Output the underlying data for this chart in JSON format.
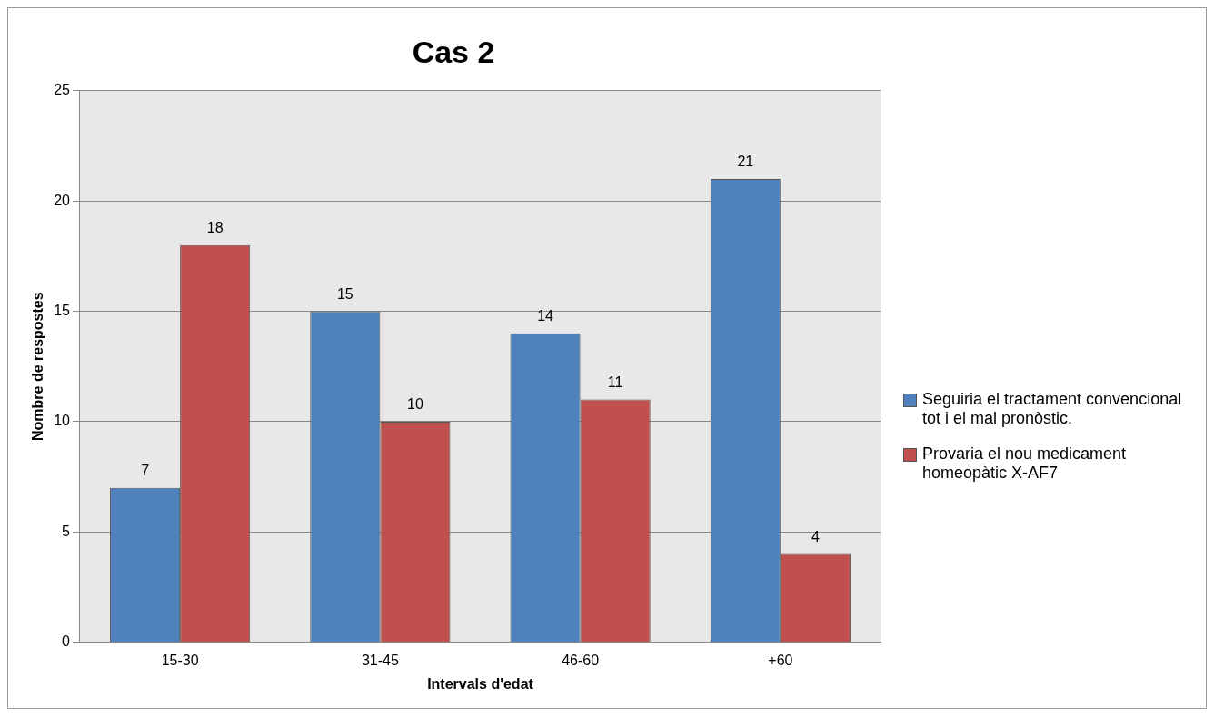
{
  "chart_data": {
    "type": "bar",
    "title": "Cas 2",
    "xlabel": "Intervals d'edat",
    "ylabel": "Nombre de respostes",
    "categories": [
      "15-30",
      "31-45",
      "46-60",
      "+60"
    ],
    "series": [
      {
        "name": "Seguiria el tractament convencional tot i el mal pronòstic.",
        "color": "#4f81bd",
        "values": [
          7,
          15,
          14,
          21
        ]
      },
      {
        "name": "Provaria el nou medicament homeopàtic X-AF7",
        "color": "#c0504d",
        "values": [
          18,
          10,
          11,
          4
        ]
      }
    ],
    "ylim": [
      0,
      25
    ],
    "yticks": [
      0,
      5,
      10,
      15,
      20,
      25
    ],
    "grid": "y",
    "legend": "right",
    "data_labels": true
  }
}
